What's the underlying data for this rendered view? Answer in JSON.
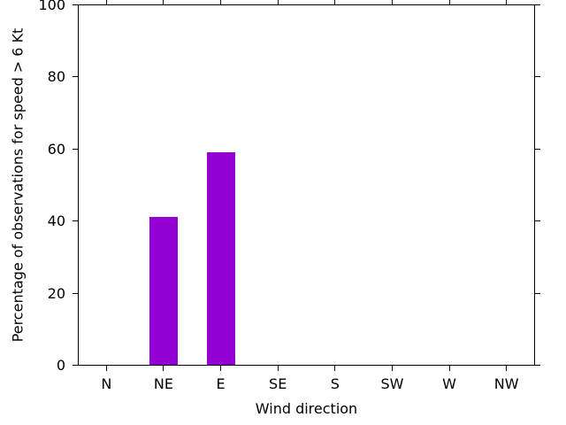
{
  "figure": {
    "background_color": "#ffffff",
    "axis_color": "#000000",
    "text_color": "#000000",
    "bar_color": "#9400d3"
  },
  "chart_data": {
    "type": "bar",
    "title": "",
    "xlabel": "Wind direction",
    "ylabel": "Percentage of observations for speed > 6 Kt",
    "categories": [
      "N",
      "NE",
      "E",
      "SE",
      "S",
      "SW",
      "W",
      "NW"
    ],
    "values": [
      0,
      41,
      59,
      0,
      0,
      0,
      0,
      0
    ],
    "ylim": [
      0,
      100
    ],
    "yticks": [
      0,
      20,
      40,
      60,
      80,
      100
    ],
    "grid": false,
    "legend_position": "none",
    "tick_direction": "out",
    "border_box": true
  }
}
